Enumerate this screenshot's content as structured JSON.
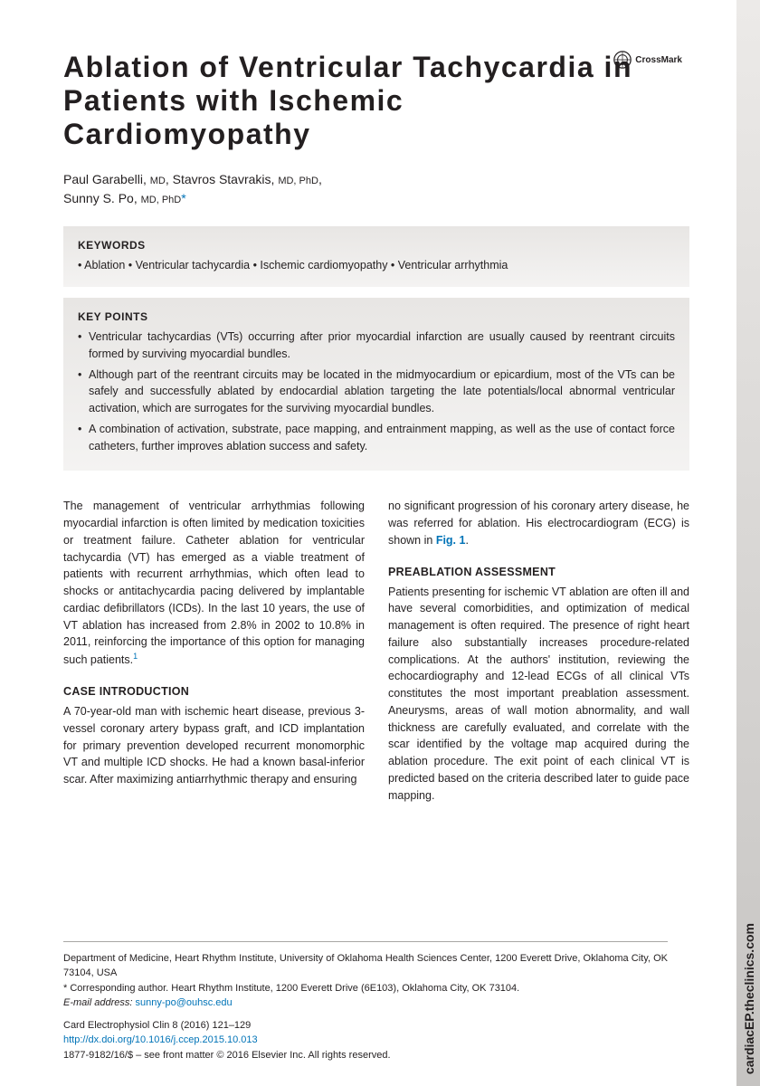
{
  "side_label": "cardiacEP.theclinics.com",
  "crossmark_label": "CrossMark",
  "title": "Ablation of Ventricular Tachycardia in Patients with Ischemic Cardiomyopathy",
  "authors_html": "Paul Garabelli, <span class='degree'>MD</span>, Stavros Stavrakis, <span class='degree'>MD, PhD</span>,<br>Sunny S. Po, <span class='degree'>MD, PhD</span><span class='star'>*</span>",
  "keywords_heading": "KEYWORDS",
  "keywords": [
    "Ablation",
    "Ventricular tachycardia",
    "Ischemic cardiomyopathy",
    "Ventricular arrhythmia"
  ],
  "keypoints_heading": "KEY POINTS",
  "keypoints": [
    "Ventricular tachycardias (VTs) occurring after prior myocardial infarction are usually caused by reentrant circuits formed by surviving myocardial bundles.",
    "Although part of the reentrant circuits may be located in the midmyocardium or epicardium, most of the VTs can be safely and successfully ablated by endocardial ablation targeting the late potentials/local abnormal ventricular activation, which are surrogates for the surviving myocardial bundles.",
    "A combination of activation, substrate, pace mapping, and entrainment mapping, as well as the use of contact force catheters, further improves ablation success and safety."
  ],
  "col1": {
    "intro": "The management of ventricular arrhythmias following myocardial infarction is often limited by medication toxicities or treatment failure. Catheter ablation for ventricular tachycardia (VT) has emerged as a viable treatment of patients with recurrent arrhythmias, which often lead to shocks or antitachycardia pacing delivered by implantable cardiac defibrillators (ICDs). In the last 10 years, the use of VT ablation has increased from 2.8% in 2002 to 10.8% in 2011, reinforcing the importance of this option for managing such patients.",
    "intro_ref": "1",
    "case_heading": "CASE INTRODUCTION",
    "case_text": "A 70-year-old man with ischemic heart disease, previous 3-vessel coronary artery bypass graft, and ICD implantation for primary prevention developed recurrent monomorphic VT and multiple ICD shocks. He had a known basal-inferior scar. After maximizing antiarrhythmic therapy and ensuring"
  },
  "col2": {
    "cont_text": "no significant progression of his coronary artery disease, he was referred for ablation. His electrocardiogram (ECG) is shown in ",
    "fig_ref": "Fig. 1",
    "pre_heading": "PREABLATION ASSESSMENT",
    "pre_text": "Patients presenting for ischemic VT ablation are often ill and have several comorbidities, and optimization of medical management is often required. The presence of right heart failure also substantially increases procedure-related complications. At the authors' institution, reviewing the echocardiography and 12-lead ECGs of all clinical VTs constitutes the most important preablation assessment. Aneurysms, areas of wall motion abnormality, and wall thickness are carefully evaluated, and correlate with the scar identified by the voltage map acquired during the ablation procedure. The exit point of each clinical VT is predicted based on the criteria described later to guide pace mapping."
  },
  "footer": {
    "affiliation": "Department of Medicine, Heart Rhythm Institute, University of Oklahoma Health Sciences Center, 1200 Everett Drive, Oklahoma City, OK 73104, USA",
    "corr_label": "* Corresponding author.",
    "corr_text": "Heart Rhythm Institute, 1200 Everett Drive (6E103), Oklahoma City, OK 73104.",
    "email_label": "E-mail address:",
    "email": "sunny-po@ouhsc.edu",
    "journal": "Card Electrophysiol Clin 8 (2016) 121–129",
    "doi": "http://dx.doi.org/10.1016/j.ccep.2015.10.013",
    "copyright": "1877-9182/16/$ – see front matter © 2016 Elsevier Inc. All rights reserved."
  },
  "colors": {
    "link": "#0073b7",
    "text": "#231f20",
    "box_bg_top": "#e8e6e4",
    "box_bg_bot": "#f4f3f2",
    "side_top": "#eceae8",
    "side_bot": "#c6c4c2"
  }
}
